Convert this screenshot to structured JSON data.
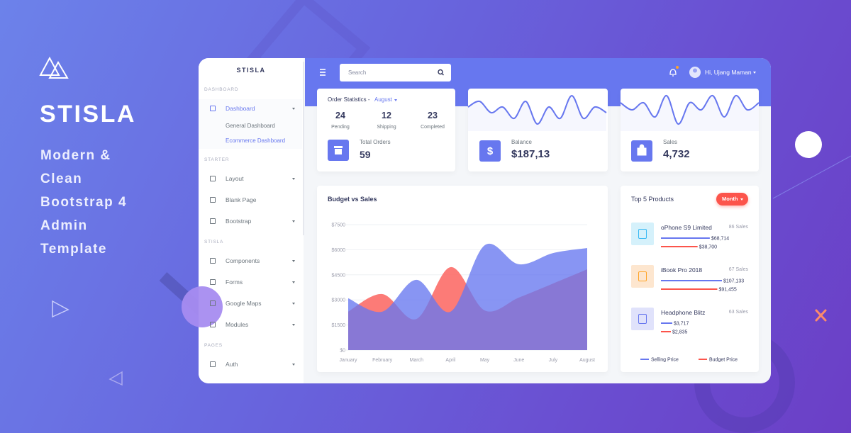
{
  "hero": {
    "title": "STISLA",
    "tagline": [
      "Modern &",
      "Clean",
      "Bootstrap 4",
      "Admin",
      "Template"
    ]
  },
  "sidebar": {
    "brand": "STISLA",
    "sections": [
      {
        "header": "DASHBOARD",
        "items": [
          "Dashboard"
        ],
        "submenu": [
          "General Dashboard",
          "Ecommerce Dashboard"
        ]
      },
      {
        "header": "STARTER",
        "items": [
          "Layout",
          "Blank Page",
          "Bootstrap"
        ]
      },
      {
        "header": "STISLA",
        "items": [
          "Components",
          "Forms",
          "Google Maps",
          "Modules"
        ]
      },
      {
        "header": "PAGES",
        "items": [
          "Auth"
        ]
      }
    ]
  },
  "navbar": {
    "search_placeholder": "Search",
    "user": "Hi, Ujang Maman"
  },
  "order_statistics": {
    "title": "Order Statistics -",
    "month": "August",
    "stats": [
      {
        "value": 24,
        "label": "Pending"
      },
      {
        "value": 12,
        "label": "Shipping"
      },
      {
        "value": 23,
        "label": "Completed"
      }
    ],
    "total_label": "Total Orders",
    "total": 59
  },
  "balance": {
    "label": "Balance",
    "value": "$187,13",
    "trend": [
      5,
      6,
      4,
      5,
      3,
      6,
      2,
      5,
      3,
      7,
      3,
      5,
      4
    ]
  },
  "sales": {
    "label": "Sales",
    "value": "4,732",
    "trend": [
      5,
      4,
      5,
      3,
      6,
      2,
      5,
      4,
      6,
      3,
      6,
      4,
      5
    ]
  },
  "chart_data": {
    "type": "area",
    "title": "Budget vs Sales",
    "categories": [
      "January",
      "February",
      "March",
      "April",
      "May",
      "June",
      "July",
      "August"
    ],
    "series": [
      {
        "color": "#fc6d68",
        "values": [
          2300,
          3350,
          1860,
          4960,
          2370,
          3140,
          3980,
          4830
        ]
      },
      {
        "color": "#6777ef",
        "values": [
          3100,
          2300,
          4200,
          2300,
          6270,
          5130,
          5800,
          6100
        ]
      }
    ],
    "ylim": [
      0,
      7500
    ],
    "yticks": [
      {
        "value": 0,
        "label": "$0"
      },
      {
        "value": 1500,
        "label": "$1500"
      },
      {
        "value": 3000,
        "label": "$3000"
      },
      {
        "value": 4500,
        "label": "$4500"
      },
      {
        "value": 6000,
        "label": "$6000"
      },
      {
        "value": 7500,
        "label": "$7500"
      }
    ],
    "grid": true
  },
  "top_products": {
    "title": "Top 5 Products",
    "button": "Month",
    "items": [
      {
        "name": "oPhone S9 Limited",
        "sales": "86 Sales",
        "selling": {
          "value": 68714,
          "label": "$68,714"
        },
        "budget": {
          "value": 38700,
          "label": "$38,700"
        }
      },
      {
        "name": "iBook Pro 2018",
        "sales": "67 Sales",
        "selling": {
          "value": 107133,
          "label": "$107,133"
        },
        "budget": {
          "value": 91455,
          "label": "$91,455"
        }
      },
      {
        "name": "Headphone Blitz",
        "sales": "63 Sales",
        "selling": {
          "value": 3717,
          "label": "$3,717"
        },
        "budget": {
          "value": 2835,
          "label": "$2,835"
        }
      }
    ],
    "legend": [
      {
        "label": "Selling Price",
        "color": "#6777ef"
      },
      {
        "label": "Budget Price",
        "color": "#fc544b"
      }
    ]
  }
}
